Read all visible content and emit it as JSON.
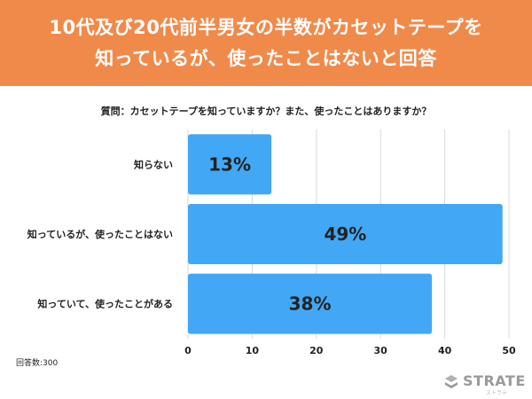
{
  "header": {
    "title_line1": "10代及び20代前半男女の半数がカセットテープを",
    "title_line2": "知っているが、使ったことはないと回答"
  },
  "colors": {
    "header_bg": "#f08a4b",
    "bar": "#42a8f5",
    "grid": "#d9d9d9"
  },
  "chart_data": {
    "type": "bar",
    "orientation": "horizontal",
    "title": "質問：カセットテープを知っていますか？また、使ったことはありますか？",
    "categories": [
      "知らない",
      "知っているが、使ったことはない",
      "知っていて、使ったことがある"
    ],
    "values": [
      13,
      49,
      38
    ],
    "value_labels": [
      "13%",
      "49%",
      "38%"
    ],
    "xlim": [
      0,
      50
    ],
    "xticks": [
      0,
      10,
      20,
      30,
      40,
      50
    ],
    "grid": true,
    "xlabel": "",
    "ylabel": ""
  },
  "footer": {
    "sample_size": "回答数:300"
  },
  "logo": {
    "name": "STRATE",
    "sub": "ストラテ"
  }
}
